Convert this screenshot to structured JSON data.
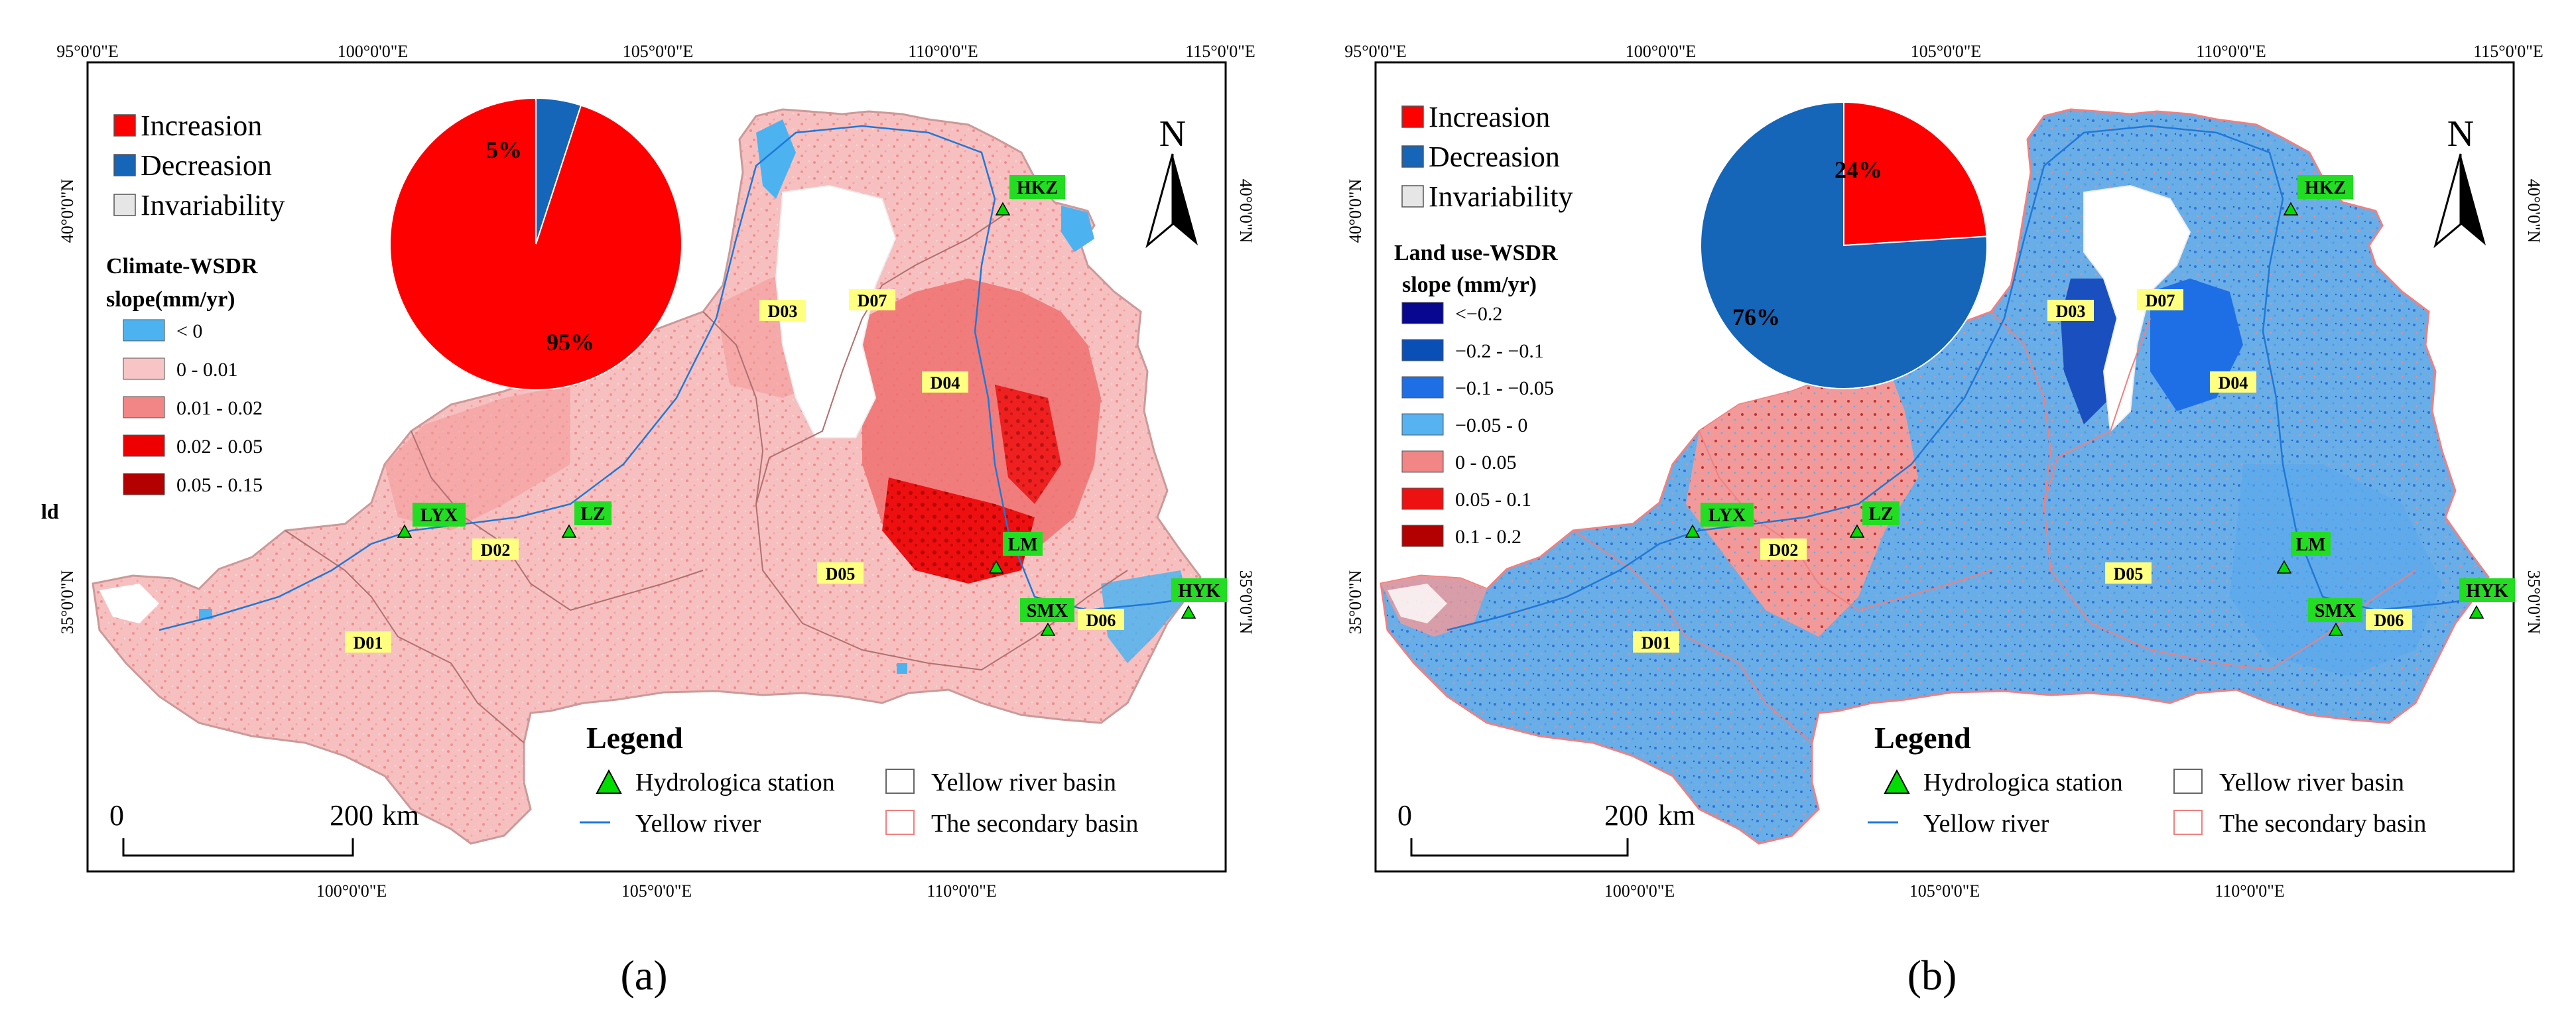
{
  "coords": {
    "top_lon": [
      "95°0'0\"E",
      "100°0'0\"E",
      "105°0'0\"E",
      "110°0'0\"E",
      "115°0'0\"E"
    ],
    "bottom_lon": [
      "100°0'0\"E",
      "105°0'0\"E",
      "110°0'0\"E"
    ],
    "lat": [
      "40°0'0\"N",
      "35°0'0\"N"
    ]
  },
  "north_label": "N",
  "legend": {
    "title": "Legend",
    "station": "Hydrologica station",
    "basin": "Yellow river basin",
    "river": "Yellow river",
    "secondary": "The secondary basin"
  },
  "scalebar": {
    "zero": "0",
    "dist": "200",
    "unit": "km"
  },
  "panels": [
    {
      "caption": "(a)",
      "stray_label": "ld",
      "pie_legend": [
        "Increasion",
        "Decreasion",
        "Invariability"
      ],
      "pie": {
        "increase_pct": 95,
        "decrease_pct": 5,
        "inc_label": "95%",
        "dec_label": "5%"
      },
      "slope_title_1": "Climate-WSDR",
      "slope_title_2": "slope(mm/yr)",
      "classes": [
        {
          "label": "< 0",
          "color": "#4db3f0"
        },
        {
          "label": "0 - 0.01",
          "color": "#f7c5c5"
        },
        {
          "label": "0.01 - 0.02",
          "color": "#f28585"
        },
        {
          "label": "0.02 - 0.05",
          "color": "#ee0000"
        },
        {
          "label": "0.05 - 0.15",
          "color": "#b30000"
        }
      ],
      "basins": [
        "D01",
        "D02",
        "D03",
        "D04",
        "D05",
        "D06",
        "D07"
      ],
      "stations": [
        "LYX",
        "LZ",
        "LM",
        "SMX",
        "HYK",
        "HKZ"
      ]
    },
    {
      "caption": "(b)",
      "pie_legend": [
        "Increasion",
        "Decreasion",
        "Invariability"
      ],
      "pie": {
        "increase_pct": 24,
        "decrease_pct": 76,
        "inc_label": "24%",
        "dec_label": "76%"
      },
      "slope_title_1": "Land use-WSDR",
      "slope_title_2": "slope (mm/yr)",
      "classes": [
        {
          "label": "<−0.2",
          "color": "#07078f"
        },
        {
          "label": "−0.2 - −0.1",
          "color": "#0a4fb5"
        },
        {
          "label": "−0.1 - −0.05",
          "color": "#1e6fe6"
        },
        {
          "label": "−0.05 - 0",
          "color": "#57b2f2"
        },
        {
          "label": "0 - 0.05",
          "color": "#f28585"
        },
        {
          "label": "0.05 - 0.1",
          "color": "#ee1111"
        },
        {
          "label": "0.1 - 0.2",
          "color": "#b30000"
        }
      ],
      "basins": [
        "D01",
        "D02",
        "D03",
        "D04",
        "D05",
        "D06",
        "D07"
      ],
      "stations": [
        "LYX",
        "LZ",
        "LM",
        "SMX",
        "HYK",
        "HKZ"
      ]
    }
  ],
  "colors": {
    "increase": "#ff0000",
    "decrease": "#1565b8",
    "invariability": "#e6e6e6",
    "station": "#00dd00",
    "basin_label_bg": "#ffff80",
    "river": "#1f78d6",
    "secondary_border": "#f08080"
  }
}
